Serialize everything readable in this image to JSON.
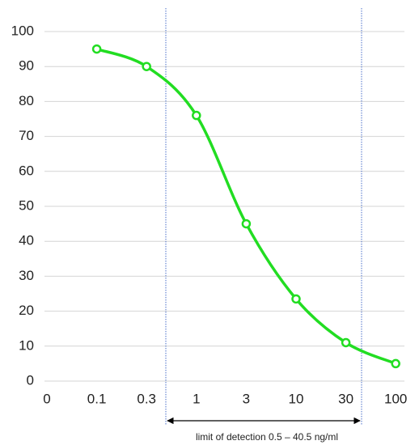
{
  "chart_data": {
    "type": "line",
    "categories": [
      "0",
      "0.1",
      "0.3",
      "1",
      "3",
      "10",
      "30",
      "100"
    ],
    "series": [
      {
        "color": "#22dd22",
        "values": [
          null,
          95,
          90,
          76,
          45,
          23.5,
          11,
          5
        ]
      }
    ],
    "ylim": [
      0,
      100
    ],
    "yticks": [
      0,
      10,
      20,
      30,
      40,
      50,
      60,
      70,
      80,
      90,
      100
    ],
    "grid": true,
    "annotation": "limit of detection 0.5 – 40.5 ng/ml"
  }
}
